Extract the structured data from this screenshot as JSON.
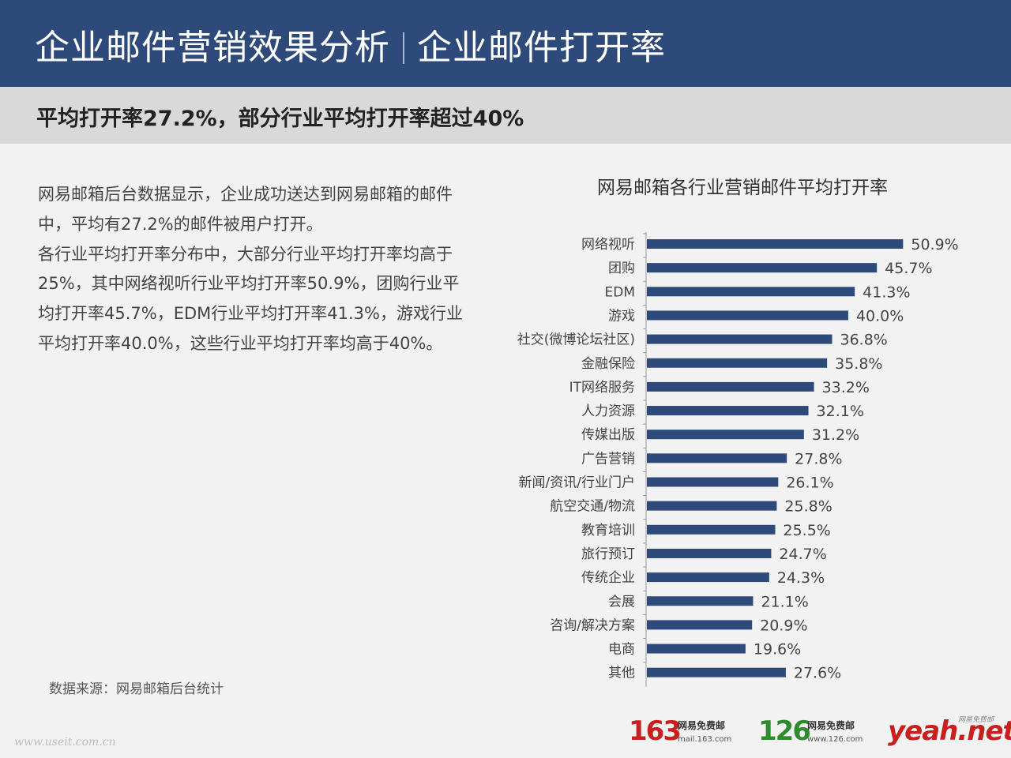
{
  "header": {
    "title_left": "企业邮件营销效果分析",
    "title_right": "企业邮件打开率"
  },
  "subheader": {
    "text": "平均打开率27.2%，部分行业平均打开率超过40%"
  },
  "description": {
    "paragraph1": "网易邮箱后台数据显示，企业成功送达到网易邮箱的邮件中，平均有27.2%的邮件被用户打开。",
    "paragraph2": "各行业平均打开率分布中，大部分行业平均打开率均高于25%，其中网络视听行业平均打开率50.9%，团购行业平均打开率45.7%，EDM行业平均打开率41.3%，游戏行业平均打开率40.0%，这些行业平均打开率均高于40%。"
  },
  "source": "数据来源：网易邮箱后台统计",
  "watermark": "www.useit.com.cn",
  "logos": {
    "l163": {
      "num": "163",
      "cn": "网易免费邮",
      "url": "mail.163.com"
    },
    "l126": {
      "num": "126",
      "cn": "网易免费邮",
      "url": "www.126.com"
    },
    "yeah": {
      "main": "yeah.net",
      "small": "网易免费邮"
    }
  },
  "colors": {
    "header_bg": "#2e4a7a",
    "bar": "#2e4a7a",
    "logo_163": "#c8201e",
    "logo_126": "#2e8b2e",
    "logo_yeah": "#c8201e"
  },
  "chart_data": {
    "type": "bar",
    "orientation": "horizontal",
    "title": "网易邮箱各行业营销邮件平均打开率",
    "categories": [
      "网络视听",
      "团购",
      "EDM",
      "游戏",
      "社交(微博论坛社区)",
      "金融保险",
      "IT网络服务",
      "人力资源",
      "传媒出版",
      "广告营销",
      "新闻/资讯/行业门户",
      "航空交通/物流",
      "教育培训",
      "旅行预订",
      "传统企业",
      "会展",
      "咨询/解决方案",
      "电商",
      "其他"
    ],
    "values": [
      50.9,
      45.7,
      41.3,
      40.0,
      36.8,
      35.8,
      33.2,
      32.1,
      31.2,
      27.8,
      26.1,
      25.8,
      25.5,
      24.7,
      24.3,
      21.1,
      20.9,
      19.6,
      27.6
    ],
    "value_labels": [
      "50.9%",
      "45.7%",
      "41.3%",
      "40.0%",
      "36.8%",
      "35.8%",
      "33.2%",
      "32.1%",
      "31.2%",
      "27.8%",
      "26.1%",
      "25.8%",
      "25.5%",
      "24.7%",
      "24.3%",
      "21.1%",
      "20.9%",
      "19.6%",
      "27.6%"
    ],
    "unit": "%",
    "xlim": [
      0,
      51
    ],
    "grid": false,
    "legend": "none"
  }
}
